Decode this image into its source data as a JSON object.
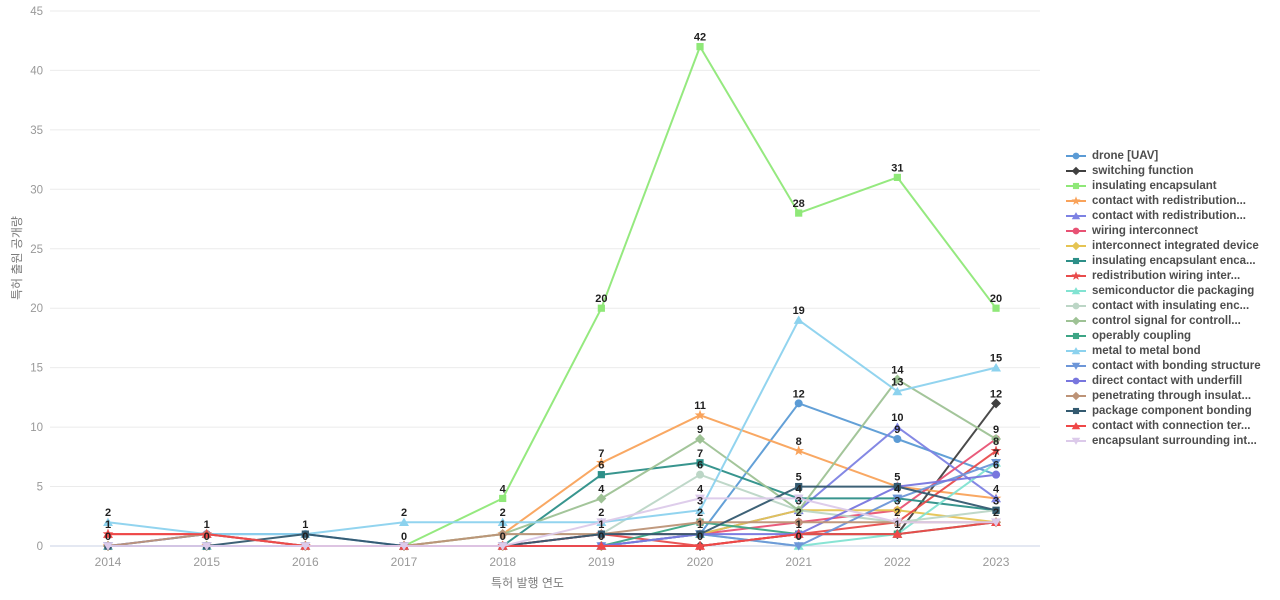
{
  "chart_data": {
    "type": "line",
    "title": "",
    "xlabel": "특허 발행 연도",
    "ylabel": "특허 출원 공개량",
    "x": [
      2014,
      2015,
      2016,
      2017,
      2018,
      2019,
      2020,
      2021,
      2022,
      2023
    ],
    "y_ticks": [
      0,
      5,
      10,
      15,
      20,
      25,
      30,
      35,
      40,
      45
    ],
    "ylim": [
      0,
      45
    ],
    "grid": true,
    "legend_position": "right",
    "colors": {
      "grid": "#ebebeb",
      "baseline": "#c9d2e6",
      "tick_text": "#999999",
      "data_label": "#1f1f1f"
    },
    "series": [
      {
        "name": "drone [UAV]",
        "color": "#5b9bd5",
        "shape": "circle",
        "values": [
          0,
          1,
          1,
          0,
          0,
          1,
          1,
          12,
          9,
          6
        ]
      },
      {
        "name": "switching function",
        "color": "#404040",
        "shape": "diamond",
        "values": [
          0,
          0,
          0,
          0,
          0,
          0,
          0,
          1,
          1,
          12
        ]
      },
      {
        "name": "insulating encapsulant",
        "color": "#8fe878",
        "shape": "square",
        "values": [
          0,
          0,
          0,
          0,
          4,
          20,
          42,
          28,
          31,
          20
        ]
      },
      {
        "name": "contact with redistribution...",
        "color": "#f9a35b",
        "shape": "star",
        "values": [
          0,
          0,
          0,
          0,
          1,
          7,
          11,
          8,
          5,
          4
        ]
      },
      {
        "name": "contact with redistribution...",
        "color": "#7d82e3",
        "shape": "triangle-up",
        "values": [
          0,
          0,
          0,
          0,
          0,
          0,
          1,
          3,
          10,
          4
        ]
      },
      {
        "name": "wiring interconnect",
        "color": "#e85274",
        "shape": "circle",
        "values": [
          0,
          0,
          0,
          0,
          0,
          1,
          1,
          2,
          3,
          9
        ]
      },
      {
        "name": "interconnect integrated device",
        "color": "#e5c453",
        "shape": "diamond",
        "values": [
          0,
          0,
          0,
          0,
          0,
          0,
          1,
          3,
          3,
          2
        ]
      },
      {
        "name": "insulating encapsulant enca...",
        "color": "#2d8f88",
        "shape": "square",
        "values": [
          0,
          0,
          0,
          0,
          0,
          6,
          7,
          4,
          4,
          3
        ]
      },
      {
        "name": "redistribution wiring inter...",
        "color": "#e84c4c",
        "shape": "star",
        "values": [
          1,
          1,
          0,
          0,
          0,
          1,
          0,
          1,
          2,
          8
        ]
      },
      {
        "name": "semiconductor die packaging",
        "color": "#82e3d2",
        "shape": "triangle-up",
        "values": [
          0,
          0,
          0,
          0,
          0,
          0,
          1,
          0,
          1,
          7
        ]
      },
      {
        "name": "contact with insulating enc...",
        "color": "#bcd6c6",
        "shape": "circle",
        "values": [
          0,
          0,
          0,
          0,
          1,
          1,
          6,
          3,
          2,
          3
        ]
      },
      {
        "name": "control signal for controll...",
        "color": "#9ec295",
        "shape": "diamond",
        "values": [
          0,
          0,
          0,
          0,
          1,
          4,
          9,
          3,
          14,
          9
        ]
      },
      {
        "name": "operably coupling",
        "color": "#3da585",
        "shape": "square",
        "values": [
          0,
          0,
          0,
          0,
          0,
          0,
          2,
          1,
          1,
          2
        ]
      },
      {
        "name": "metal to metal bond",
        "color": "#8cd2ee",
        "shape": "triangle-up",
        "values": [
          2,
          1,
          1,
          2,
          2,
          2,
          3,
          19,
          13,
          15
        ]
      },
      {
        "name": "contact with bonding structure",
        "color": "#6d96d8",
        "shape": "triangle-down",
        "values": [
          0,
          0,
          0,
          0,
          0,
          0,
          1,
          0,
          4,
          7
        ]
      },
      {
        "name": "direct contact with underfill",
        "color": "#7876de",
        "shape": "circle",
        "values": [
          0,
          1,
          0,
          0,
          0,
          0,
          1,
          1,
          5,
          6
        ]
      },
      {
        "name": "penetrating through insulat...",
        "color": "#bd9377",
        "shape": "diamond",
        "values": [
          0,
          1,
          0,
          0,
          1,
          1,
          2,
          2,
          2,
          2
        ]
      },
      {
        "name": "package component bonding",
        "color": "#345a70",
        "shape": "square",
        "values": [
          0,
          0,
          1,
          0,
          0,
          1,
          1,
          5,
          5,
          3
        ]
      },
      {
        "name": "contact with connection ter...",
        "color": "#ef4848",
        "shape": "triangle-up",
        "values": [
          1,
          1,
          0,
          0,
          0,
          0,
          0,
          1,
          1,
          2
        ]
      },
      {
        "name": "encapsulant surrounding int...",
        "color": "#dccaea",
        "shape": "triangle-down",
        "values": [
          0,
          0,
          0,
          0,
          0,
          2,
          4,
          4,
          2,
          2
        ]
      }
    ]
  }
}
